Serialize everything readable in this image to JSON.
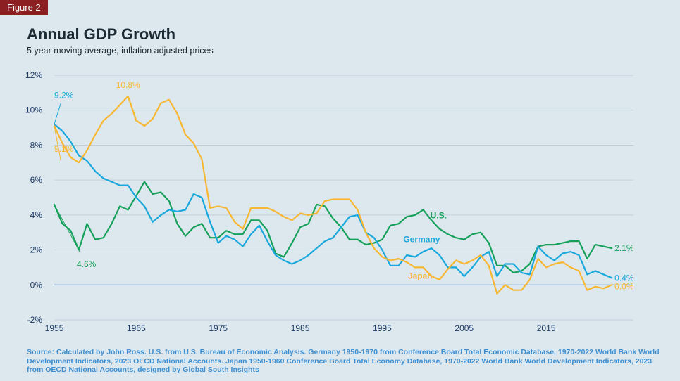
{
  "figure_label": "Figure 2",
  "title": "Annual GDP Growth",
  "subtitle": "5 year moving average, inflation adjusted prices",
  "source": "Source: Calculated by John Ross. U.S. from U.S. Bureau of Economic Analysis. Germany 1950-1970 from Conference Board Total Economic Database, 1970-2022 World Bank World Development Indicators, 2023 OECD National Accounts. Japan 1950-1960 Conference Board Total Economy Database, 1970-2022 World Bank World Development Indicators, 2023 from OECD National Accounts, designed by Global South Insights",
  "colors": {
    "us": "#16a05a",
    "germany": "#1aa8dc",
    "japan": "#f7b731",
    "grid": "#b9cad6",
    "zero": "#6e8fb3",
    "axis_text": "#1c3a66"
  },
  "chart_data": {
    "type": "line",
    "title": "Annual GDP Growth",
    "subtitle": "5 year moving average, inflation adjusted prices",
    "xlabel": "",
    "ylabel": "",
    "xlim": [
      1955,
      2023
    ],
    "ylim": [
      -2,
      12
    ],
    "xticks": [
      1955,
      1965,
      1975,
      1985,
      1995,
      2005,
      2015
    ],
    "yticks": [
      -2,
      0,
      2,
      4,
      6,
      8,
      10,
      12
    ],
    "ytick_labels": [
      "-2%",
      "0%",
      "2%",
      "4%",
      "6%",
      "8%",
      "10%",
      "12%"
    ],
    "grid": true,
    "x": [
      1955,
      1956,
      1957,
      1958,
      1959,
      1960,
      1961,
      1962,
      1963,
      1964,
      1965,
      1966,
      1967,
      1968,
      1969,
      1970,
      1971,
      1972,
      1973,
      1974,
      1975,
      1976,
      1977,
      1978,
      1979,
      1980,
      1981,
      1982,
      1983,
      1984,
      1985,
      1986,
      1987,
      1988,
      1989,
      1990,
      1991,
      1992,
      1993,
      1994,
      1995,
      1996,
      1997,
      1998,
      1999,
      2000,
      2001,
      2002,
      2003,
      2004,
      2005,
      2006,
      2007,
      2008,
      2009,
      2010,
      2011,
      2012,
      2013,
      2014,
      2015,
      2016,
      2017,
      2018,
      2019,
      2020,
      2021,
      2022,
      2023
    ],
    "series": [
      {
        "name": "U.S.",
        "key": "us",
        "values": [
          4.6,
          3.5,
          3.1,
          2.0,
          3.5,
          2.6,
          2.7,
          3.5,
          4.5,
          4.3,
          5.1,
          5.9,
          5.2,
          5.3,
          4.8,
          3.5,
          2.8,
          3.3,
          3.5,
          2.7,
          2.7,
          3.1,
          2.9,
          2.9,
          3.7,
          3.7,
          3.1,
          1.8,
          1.6,
          2.4,
          3.3,
          3.5,
          4.6,
          4.5,
          3.8,
          3.3,
          2.6,
          2.6,
          2.3,
          2.4,
          2.6,
          3.4,
          3.5,
          3.9,
          4.0,
          4.3,
          3.7,
          3.2,
          2.9,
          2.7,
          2.6,
          2.9,
          3.0,
          2.4,
          1.1,
          1.1,
          0.7,
          0.8,
          1.2,
          2.2,
          2.3,
          2.3,
          2.4,
          2.5,
          2.5,
          1.5,
          2.3,
          2.2,
          2.1
        ]
      },
      {
        "name": "Germany",
        "key": "germany",
        "values": [
          9.2,
          8.8,
          8.2,
          7.4,
          7.1,
          6.5,
          6.1,
          5.9,
          5.7,
          5.7,
          5.0,
          4.5,
          3.6,
          4.0,
          4.3,
          4.2,
          4.3,
          5.2,
          5.0,
          3.6,
          2.4,
          2.8,
          2.6,
          2.2,
          2.9,
          3.4,
          2.5,
          1.7,
          1.4,
          1.2,
          1.4,
          1.7,
          2.1,
          2.5,
          2.7,
          3.3,
          3.9,
          4.0,
          3.0,
          2.7,
          2.0,
          1.1,
          1.1,
          1.7,
          1.6,
          1.9,
          2.1,
          1.7,
          1.0,
          1.0,
          0.5,
          1.0,
          1.6,
          1.9,
          0.5,
          1.2,
          1.2,
          0.7,
          0.6,
          2.2,
          1.7,
          1.4,
          1.8,
          1.9,
          1.7,
          0.6,
          0.8,
          0.6,
          0.4
        ]
      },
      {
        "name": "Japan",
        "key": "japan",
        "values": [
          9.1,
          8.1,
          7.3,
          7.0,
          7.7,
          8.6,
          9.4,
          9.8,
          10.3,
          10.8,
          9.4,
          9.1,
          9.5,
          10.4,
          10.6,
          9.8,
          8.6,
          8.1,
          7.2,
          4.4,
          4.5,
          4.4,
          3.6,
          3.2,
          4.4,
          4.4,
          4.4,
          4.2,
          3.9,
          3.7,
          4.1,
          4.0,
          4.1,
          4.8,
          4.9,
          4.9,
          4.9,
          4.3,
          3.0,
          2.1,
          1.6,
          1.4,
          1.5,
          1.3,
          1.0,
          1.0,
          0.5,
          0.3,
          0.9,
          1.4,
          1.2,
          1.4,
          1.7,
          1.1,
          -0.5,
          0.0,
          -0.3,
          -0.3,
          0.3,
          1.5,
          1.0,
          1.2,
          1.3,
          1.0,
          0.8,
          -0.3,
          -0.1,
          -0.2,
          0.0
        ]
      }
    ],
    "annotations": [
      {
        "text": "9.2%",
        "series": "germany",
        "x": 1955,
        "value": 9.2
      },
      {
        "text": "9.1%",
        "series": "japan",
        "x": 1955,
        "value": 9.1
      },
      {
        "text": "10.8%",
        "series": "japan",
        "x": 1964,
        "value": 10.8
      },
      {
        "text": "4.6%",
        "series": "us",
        "x": 1955,
        "value": 4.6
      },
      {
        "text": "2.1%",
        "series": "us",
        "x": 2023,
        "value": 2.1
      },
      {
        "text": "0.4%",
        "series": "germany",
        "x": 2023,
        "value": 0.4
      },
      {
        "text": "0.0%",
        "series": "japan",
        "x": 2023,
        "value": 0.0
      },
      {
        "text": "U.S.",
        "series": "us",
        "x": 2000,
        "value": 4.3
      },
      {
        "text": "Germany",
        "series": "germany",
        "x": 1995,
        "value": 2.0
      },
      {
        "text": "Japan",
        "series": "japan",
        "x": 1999,
        "value": 1.0
      }
    ]
  }
}
